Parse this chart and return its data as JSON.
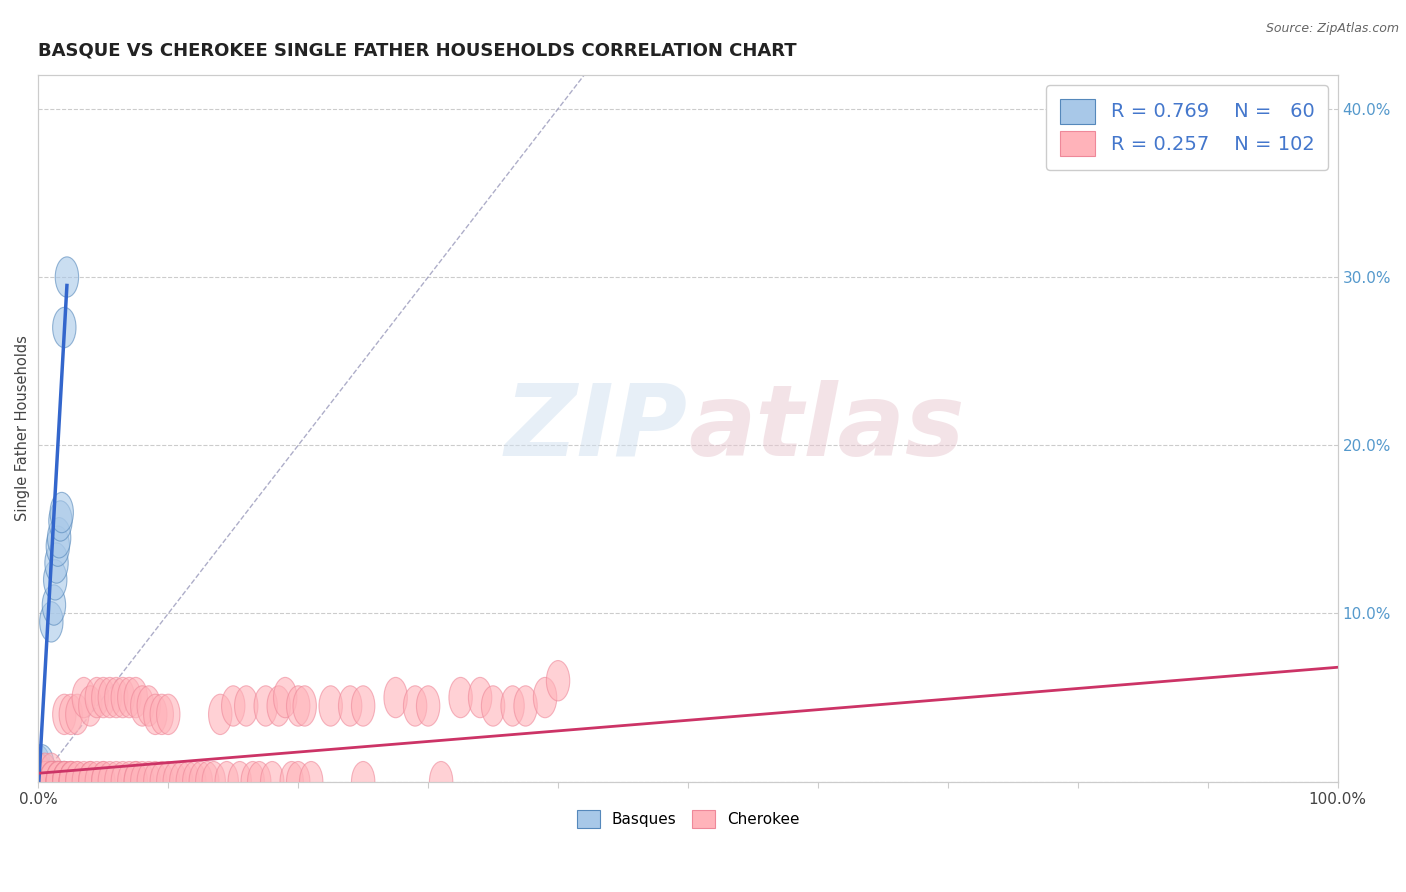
{
  "title": "BASQUE VS CHEROKEE SINGLE FATHER HOUSEHOLDS CORRELATION CHART",
  "source_text": "Source: ZipAtlas.com",
  "ylabel": "Single Father Households",
  "xlim": [
    0,
    1.0
  ],
  "ylim": [
    0,
    0.42
  ],
  "xticks": [
    0.0,
    0.1,
    0.2,
    0.3,
    0.4,
    0.5,
    0.6,
    0.7,
    0.8,
    0.9,
    1.0
  ],
  "xticklabels": [
    "0.0%",
    "",
    "",
    "",
    "",
    "",
    "",
    "",
    "",
    "",
    "100.0%"
  ],
  "yticks_left": [
    0.0,
    0.1,
    0.2,
    0.3,
    0.4
  ],
  "yticklabels_left": [
    "",
    "",
    "",
    "",
    ""
  ],
  "yticks_right": [
    0.1,
    0.2,
    0.3,
    0.4
  ],
  "yticklabels_right": [
    "10.0%",
    "20.0%",
    "30.0%",
    "40.0%"
  ],
  "basque_color": "#a8c8e8",
  "cherokee_color": "#ffb3ba",
  "basque_edge_color": "#5588bb",
  "cherokee_edge_color": "#ee8899",
  "basque_line_color": "#3366cc",
  "cherokee_line_color": "#cc3366",
  "diagonal_color": "#9999bb",
  "R_basque": 0.769,
  "N_basque": 60,
  "R_cherokee": 0.257,
  "N_cherokee": 102,
  "legend_label_basque": "Basques",
  "legend_label_cherokee": "Cherokee",
  "watermark_zip": "ZIP",
  "watermark_atlas": "atlas",
  "background_color": "#ffffff",
  "title_fontsize": 13,
  "axis_tick_fontsize": 11,
  "legend_fontsize": 14,
  "legend_color": "#4477cc",
  "basque_points": [
    [
      0.0,
      0.0
    ],
    [
      0.0,
      0.005
    ],
    [
      0.0,
      0.0
    ],
    [
      0.0,
      0.0
    ],
    [
      0.0,
      0.0
    ],
    [
      0.0,
      0.01
    ],
    [
      0.0,
      0.0
    ],
    [
      0.0,
      0.0
    ],
    [
      0.0,
      0.0
    ],
    [
      0.0,
      0.0
    ],
    [
      0.0,
      0.0
    ],
    [
      0.0,
      0.0
    ],
    [
      0.0,
      0.0
    ],
    [
      0.0,
      0.0
    ],
    [
      0.0,
      0.0
    ],
    [
      0.001,
      0.0
    ],
    [
      0.001,
      0.0
    ],
    [
      0.001,
      0.005
    ],
    [
      0.002,
      0.0
    ],
    [
      0.002,
      0.0
    ],
    [
      0.002,
      0.0
    ],
    [
      0.002,
      0.0
    ],
    [
      0.003,
      0.0
    ],
    [
      0.003,
      0.0
    ],
    [
      0.003,
      0.01
    ],
    [
      0.004,
      0.0
    ],
    [
      0.004,
      0.0
    ],
    [
      0.004,
      0.0
    ],
    [
      0.005,
      0.0
    ],
    [
      0.005,
      0.0
    ],
    [
      0.006,
      0.0
    ],
    [
      0.006,
      0.0
    ],
    [
      0.007,
      0.0
    ],
    [
      0.007,
      0.0
    ],
    [
      0.008,
      0.0
    ],
    [
      0.008,
      0.0
    ],
    [
      0.009,
      0.0
    ],
    [
      0.009,
      0.0
    ],
    [
      0.01,
      0.0
    ],
    [
      0.01,
      0.0
    ],
    [
      0.012,
      0.0
    ],
    [
      0.013,
      0.0
    ],
    [
      0.014,
      0.0
    ],
    [
      0.015,
      0.0
    ],
    [
      0.015,
      0.0
    ],
    [
      0.016,
      0.0
    ],
    [
      0.017,
      0.0
    ],
    [
      0.018,
      0.0
    ],
    [
      0.019,
      0.0
    ],
    [
      0.02,
      0.0
    ],
    [
      0.01,
      0.095
    ],
    [
      0.012,
      0.105
    ],
    [
      0.013,
      0.12
    ],
    [
      0.014,
      0.13
    ],
    [
      0.015,
      0.14
    ],
    [
      0.016,
      0.145
    ],
    [
      0.017,
      0.155
    ],
    [
      0.018,
      0.16
    ],
    [
      0.02,
      0.27
    ],
    [
      0.022,
      0.3
    ]
  ],
  "cherokee_points": [
    [
      0.0,
      0.0
    ],
    [
      0.0,
      0.0
    ],
    [
      0.0,
      0.005
    ],
    [
      0.0,
      0.0
    ],
    [
      0.0,
      0.0
    ],
    [
      0.005,
      0.0
    ],
    [
      0.005,
      0.0
    ],
    [
      0.005,
      0.005
    ],
    [
      0.005,
      0.0
    ],
    [
      0.005,
      0.0
    ],
    [
      0.01,
      0.0
    ],
    [
      0.01,
      0.005
    ],
    [
      0.01,
      0.0
    ],
    [
      0.01,
      0.0
    ],
    [
      0.01,
      0.0
    ],
    [
      0.015,
      0.0
    ],
    [
      0.015,
      0.0
    ],
    [
      0.015,
      0.0
    ],
    [
      0.015,
      0.0
    ],
    [
      0.015,
      0.0
    ],
    [
      0.02,
      0.0
    ],
    [
      0.02,
      0.0
    ],
    [
      0.02,
      0.0
    ],
    [
      0.02,
      0.04
    ],
    [
      0.02,
      0.0
    ],
    [
      0.025,
      0.0
    ],
    [
      0.025,
      0.0
    ],
    [
      0.025,
      0.04
    ],
    [
      0.025,
      0.0
    ],
    [
      0.025,
      0.0
    ],
    [
      0.03,
      0.0
    ],
    [
      0.03,
      0.04
    ],
    [
      0.03,
      0.0
    ],
    [
      0.035,
      0.0
    ],
    [
      0.035,
      0.05
    ],
    [
      0.04,
      0.0
    ],
    [
      0.04,
      0.045
    ],
    [
      0.04,
      0.0
    ],
    [
      0.045,
      0.05
    ],
    [
      0.045,
      0.0
    ],
    [
      0.05,
      0.0
    ],
    [
      0.05,
      0.05
    ],
    [
      0.05,
      0.0
    ],
    [
      0.055,
      0.0
    ],
    [
      0.055,
      0.05
    ],
    [
      0.06,
      0.05
    ],
    [
      0.06,
      0.0
    ],
    [
      0.065,
      0.0
    ],
    [
      0.065,
      0.05
    ],
    [
      0.07,
      0.0
    ],
    [
      0.07,
      0.05
    ],
    [
      0.075,
      0.0
    ],
    [
      0.075,
      0.05
    ],
    [
      0.075,
      0.0
    ],
    [
      0.08,
      0.045
    ],
    [
      0.08,
      0.0
    ],
    [
      0.085,
      0.0
    ],
    [
      0.085,
      0.045
    ],
    [
      0.09,
      0.0
    ],
    [
      0.09,
      0.04
    ],
    [
      0.095,
      0.0
    ],
    [
      0.095,
      0.04
    ],
    [
      0.1,
      0.0
    ],
    [
      0.1,
      0.04
    ],
    [
      0.105,
      0.0
    ],
    [
      0.11,
      0.0
    ],
    [
      0.115,
      0.0
    ],
    [
      0.12,
      0.0
    ],
    [
      0.125,
      0.0
    ],
    [
      0.13,
      0.0
    ],
    [
      0.135,
      0.0
    ],
    [
      0.14,
      0.04
    ],
    [
      0.145,
      0.0
    ],
    [
      0.15,
      0.045
    ],
    [
      0.155,
      0.0
    ],
    [
      0.16,
      0.045
    ],
    [
      0.165,
      0.0
    ],
    [
      0.17,
      0.0
    ],
    [
      0.175,
      0.045
    ],
    [
      0.18,
      0.0
    ],
    [
      0.185,
      0.045
    ],
    [
      0.19,
      0.05
    ],
    [
      0.195,
      0.0
    ],
    [
      0.2,
      0.0
    ],
    [
      0.2,
      0.045
    ],
    [
      0.205,
      0.045
    ],
    [
      0.21,
      0.0
    ],
    [
      0.225,
      0.045
    ],
    [
      0.24,
      0.045
    ],
    [
      0.25,
      0.0
    ],
    [
      0.25,
      0.045
    ],
    [
      0.275,
      0.05
    ],
    [
      0.29,
      0.045
    ],
    [
      0.3,
      0.045
    ],
    [
      0.31,
      0.0
    ],
    [
      0.325,
      0.05
    ],
    [
      0.34,
      0.05
    ],
    [
      0.35,
      0.045
    ],
    [
      0.365,
      0.045
    ],
    [
      0.375,
      0.045
    ],
    [
      0.39,
      0.05
    ],
    [
      0.4,
      0.06
    ]
  ]
}
